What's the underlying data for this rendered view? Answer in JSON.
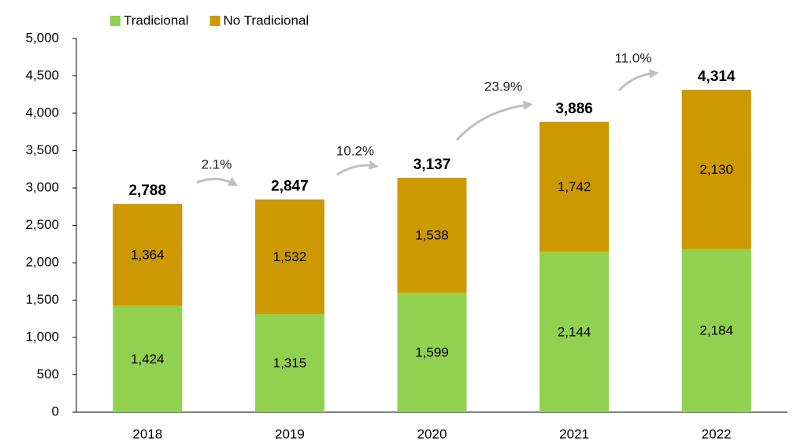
{
  "chart_data": {
    "type": "stacked_bar",
    "categories": [
      "2018",
      "2019",
      "2020",
      "2021",
      "2022"
    ],
    "series": [
      {
        "name": "Tradicional",
        "color": "#92d050",
        "values": [
          1424,
          1315,
          1599,
          2144,
          2184
        ],
        "value_labels": [
          "1,424",
          "1,315",
          "1,599",
          "2,144",
          "2,184"
        ]
      },
      {
        "name": "No Tradicional",
        "color": "#cc9900",
        "values": [
          1364,
          1532,
          1538,
          1742,
          2130
        ],
        "value_labels": [
          "1,364",
          "1,532",
          "1,538",
          "1,742",
          "2,130"
        ]
      }
    ],
    "totals": [
      2788,
      2847,
      3137,
      3886,
      4314
    ],
    "total_labels": [
      "2,788",
      "2,847",
      "3,137",
      "3,886",
      "4,314"
    ],
    "annotations": [
      "2.1%",
      "10.2%",
      "23.9%",
      "11.0%"
    ],
    "ylim": [
      0,
      5000
    ],
    "yticks": [
      0,
      500,
      {
        "value": 1000,
        "label": "1,000"
      },
      {
        "value": 1500,
        "label": "1,500"
      },
      {
        "value": 2000,
        "label": "2,000"
      },
      {
        "value": 2500,
        "label": "2,500"
      },
      {
        "value": 3000,
        "label": "3,000"
      },
      {
        "value": 3500,
        "label": "3,500"
      },
      {
        "value": 4000,
        "label": "4,000"
      },
      {
        "value": 4500,
        "label": "4,500"
      },
      {
        "value": 5000,
        "label": "5,000"
      }
    ],
    "legend": "top-left"
  }
}
